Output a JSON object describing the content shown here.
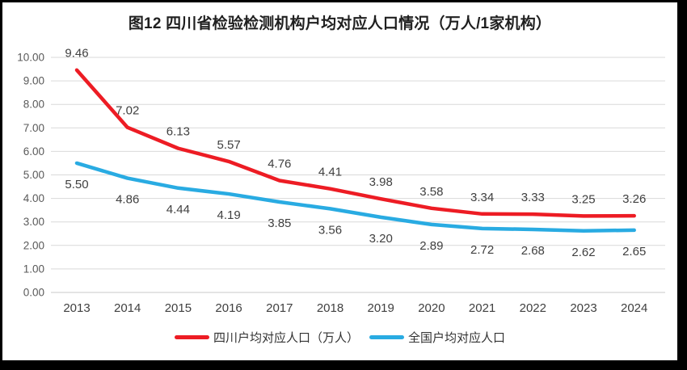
{
  "chart_data": {
    "type": "line",
    "title": "图12 四川省检验检测机构户均对应人口情况（万人/1家机构）",
    "categories": [
      "2013",
      "2014",
      "2015",
      "2016",
      "2017",
      "2018",
      "2019",
      "2020",
      "2021",
      "2022",
      "2023",
      "2024"
    ],
    "series": [
      {
        "name": "四川户均对应人口（万人）",
        "color": "#ed1c24",
        "label_position": "above",
        "values": [
          9.46,
          7.02,
          6.13,
          5.57,
          4.76,
          4.41,
          3.98,
          3.58,
          3.34,
          3.33,
          3.25,
          3.26
        ]
      },
      {
        "name": "全国户均对应人口",
        "color": "#29abe2",
        "label_position": "below",
        "values": [
          5.5,
          4.86,
          4.44,
          4.19,
          3.85,
          3.56,
          3.2,
          2.89,
          2.72,
          2.68,
          2.62,
          2.65
        ]
      }
    ],
    "yticks": [
      "0.00",
      "1.00",
      "2.00",
      "3.00",
      "4.00",
      "5.00",
      "6.00",
      "7.00",
      "8.00",
      "9.00",
      "10.00"
    ],
    "ylim": [
      0,
      10
    ],
    "ytick_step": 1,
    "grid": true,
    "legend_position": "bottom",
    "value_format": "2dp"
  },
  "colors": {
    "frame": "#000000",
    "background": "#ffffff",
    "gridline": "#d9d9d9",
    "axis_line": "#c8c8c8",
    "ytick_text": "#595959",
    "xtick_text": "#404040",
    "data_label_text": "#404040",
    "title_text": "#1f1f1f"
  }
}
